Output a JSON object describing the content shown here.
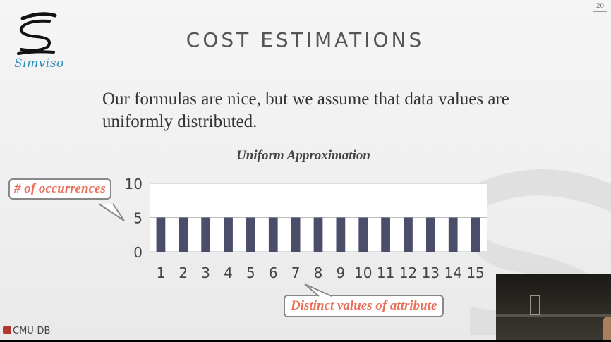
{
  "slide": {
    "page_number": "20",
    "title": "COST ESTIMATIONS",
    "logo_text": "Simviso",
    "body_text": "Our formulas are nice, but we assume that data values are uniformly distributed.",
    "footer_label": "CMU-DB"
  },
  "callouts": {
    "y_axis": "# of occurrences",
    "x_axis": "Distinct values of attribute"
  },
  "chart_data": {
    "type": "bar",
    "title": "Uniform Approximation",
    "categories": [
      "1",
      "2",
      "3",
      "4",
      "5",
      "6",
      "7",
      "8",
      "9",
      "10",
      "11",
      "12",
      "13",
      "14",
      "15"
    ],
    "values": [
      5,
      5,
      5,
      5,
      5,
      5,
      5,
      5,
      5,
      5,
      5,
      5,
      5,
      5,
      5
    ],
    "ylim": [
      0,
      10
    ],
    "yticks": [
      0,
      5,
      10
    ],
    "xlabel": "Distinct values of attribute",
    "ylabel": "# of occurrences",
    "grid": true,
    "bar_color": "#4a4e6b"
  },
  "colors": {
    "callout_text": "#e8705a",
    "logo_blue": "#2a8fb8"
  }
}
